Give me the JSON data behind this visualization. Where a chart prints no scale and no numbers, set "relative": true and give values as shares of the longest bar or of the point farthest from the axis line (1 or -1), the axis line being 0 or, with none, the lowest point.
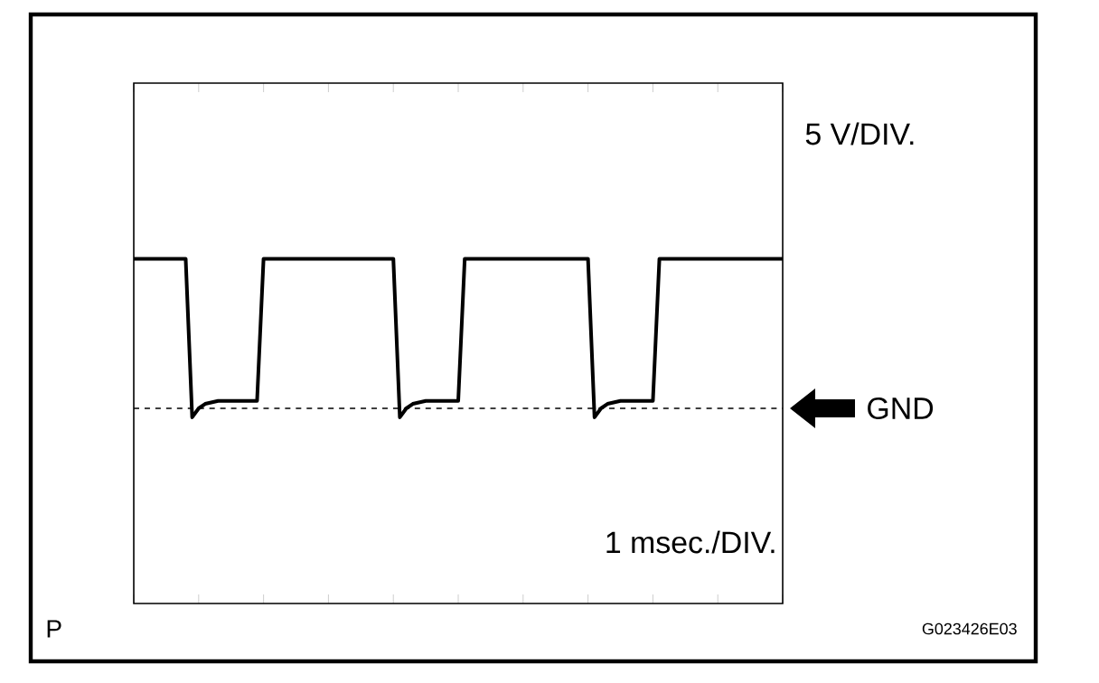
{
  "chart_data": {
    "type": "line",
    "relative": true,
    "color": "#000000",
    "categories": [
      null,
      null,
      null,
      null,
      null,
      null,
      null,
      null,
      null,
      null,
      null,
      null,
      null,
      null,
      null,
      null,
      null,
      null,
      null,
      null,
      null,
      null,
      null,
      null,
      null,
      null,
      null,
      null,
      null,
      null,
      null,
      null,
      null,
      null,
      null,
      null,
      null,
      null,
      null,
      null,
      null,
      null,
      null,
      null,
      null,
      null,
      null,
      null,
      null,
      null,
      null,
      null,
      null,
      null,
      null,
      null,
      null,
      null,
      null,
      null,
      null,
      null,
      null,
      null,
      null,
      null,
      null,
      null,
      null,
      null,
      null,
      null,
      null,
      null,
      null,
      null,
      null,
      null,
      null,
      null,
      null,
      null,
      null,
      null,
      null,
      null,
      null,
      null,
      null,
      null,
      null,
      null,
      null,
      null,
      null,
      null,
      null,
      null,
      null,
      null,
      null
    ],
    "values": [
      1,
      1,
      1,
      1,
      1,
      1,
      1,
      1,
      1,
      -0.06,
      0,
      0.03,
      0.04,
      0.05,
      0.05,
      0.05,
      0.05,
      0.05,
      0.05,
      0.05,
      1,
      1,
      1,
      1,
      1,
      1,
      1,
      1,
      1,
      1,
      1,
      1,
      1,
      1,
      1,
      1,
      1,
      1,
      1,
      1,
      1,
      -0.06,
      0,
      0.03,
      0.04,
      0.05,
      0.05,
      0.05,
      0.05,
      0.05,
      0.05,
      1,
      1,
      1,
      1,
      1,
      1,
      1,
      1,
      1,
      1,
      1,
      1,
      1,
      1,
      1,
      1,
      1,
      1,
      1,
      1,
      -0.06,
      0,
      0.03,
      0.04,
      0.05,
      0.05,
      0.05,
      0.05,
      0.05,
      0.05,
      1,
      1,
      1,
      1,
      1,
      1,
      1,
      1,
      1,
      1,
      1,
      1,
      1,
      1,
      1,
      1,
      1,
      1,
      1,
      1
    ],
    "tick_labels": false,
    "ref_lines": [
      {
        "axis": "y",
        "value": 0,
        "label": "GND",
        "line_style": "dashed"
      }
    ],
    "annotations": [
      "5 V/DIV.",
      "1 msec./DIV.",
      "P",
      "G023426E03"
    ]
  }
}
